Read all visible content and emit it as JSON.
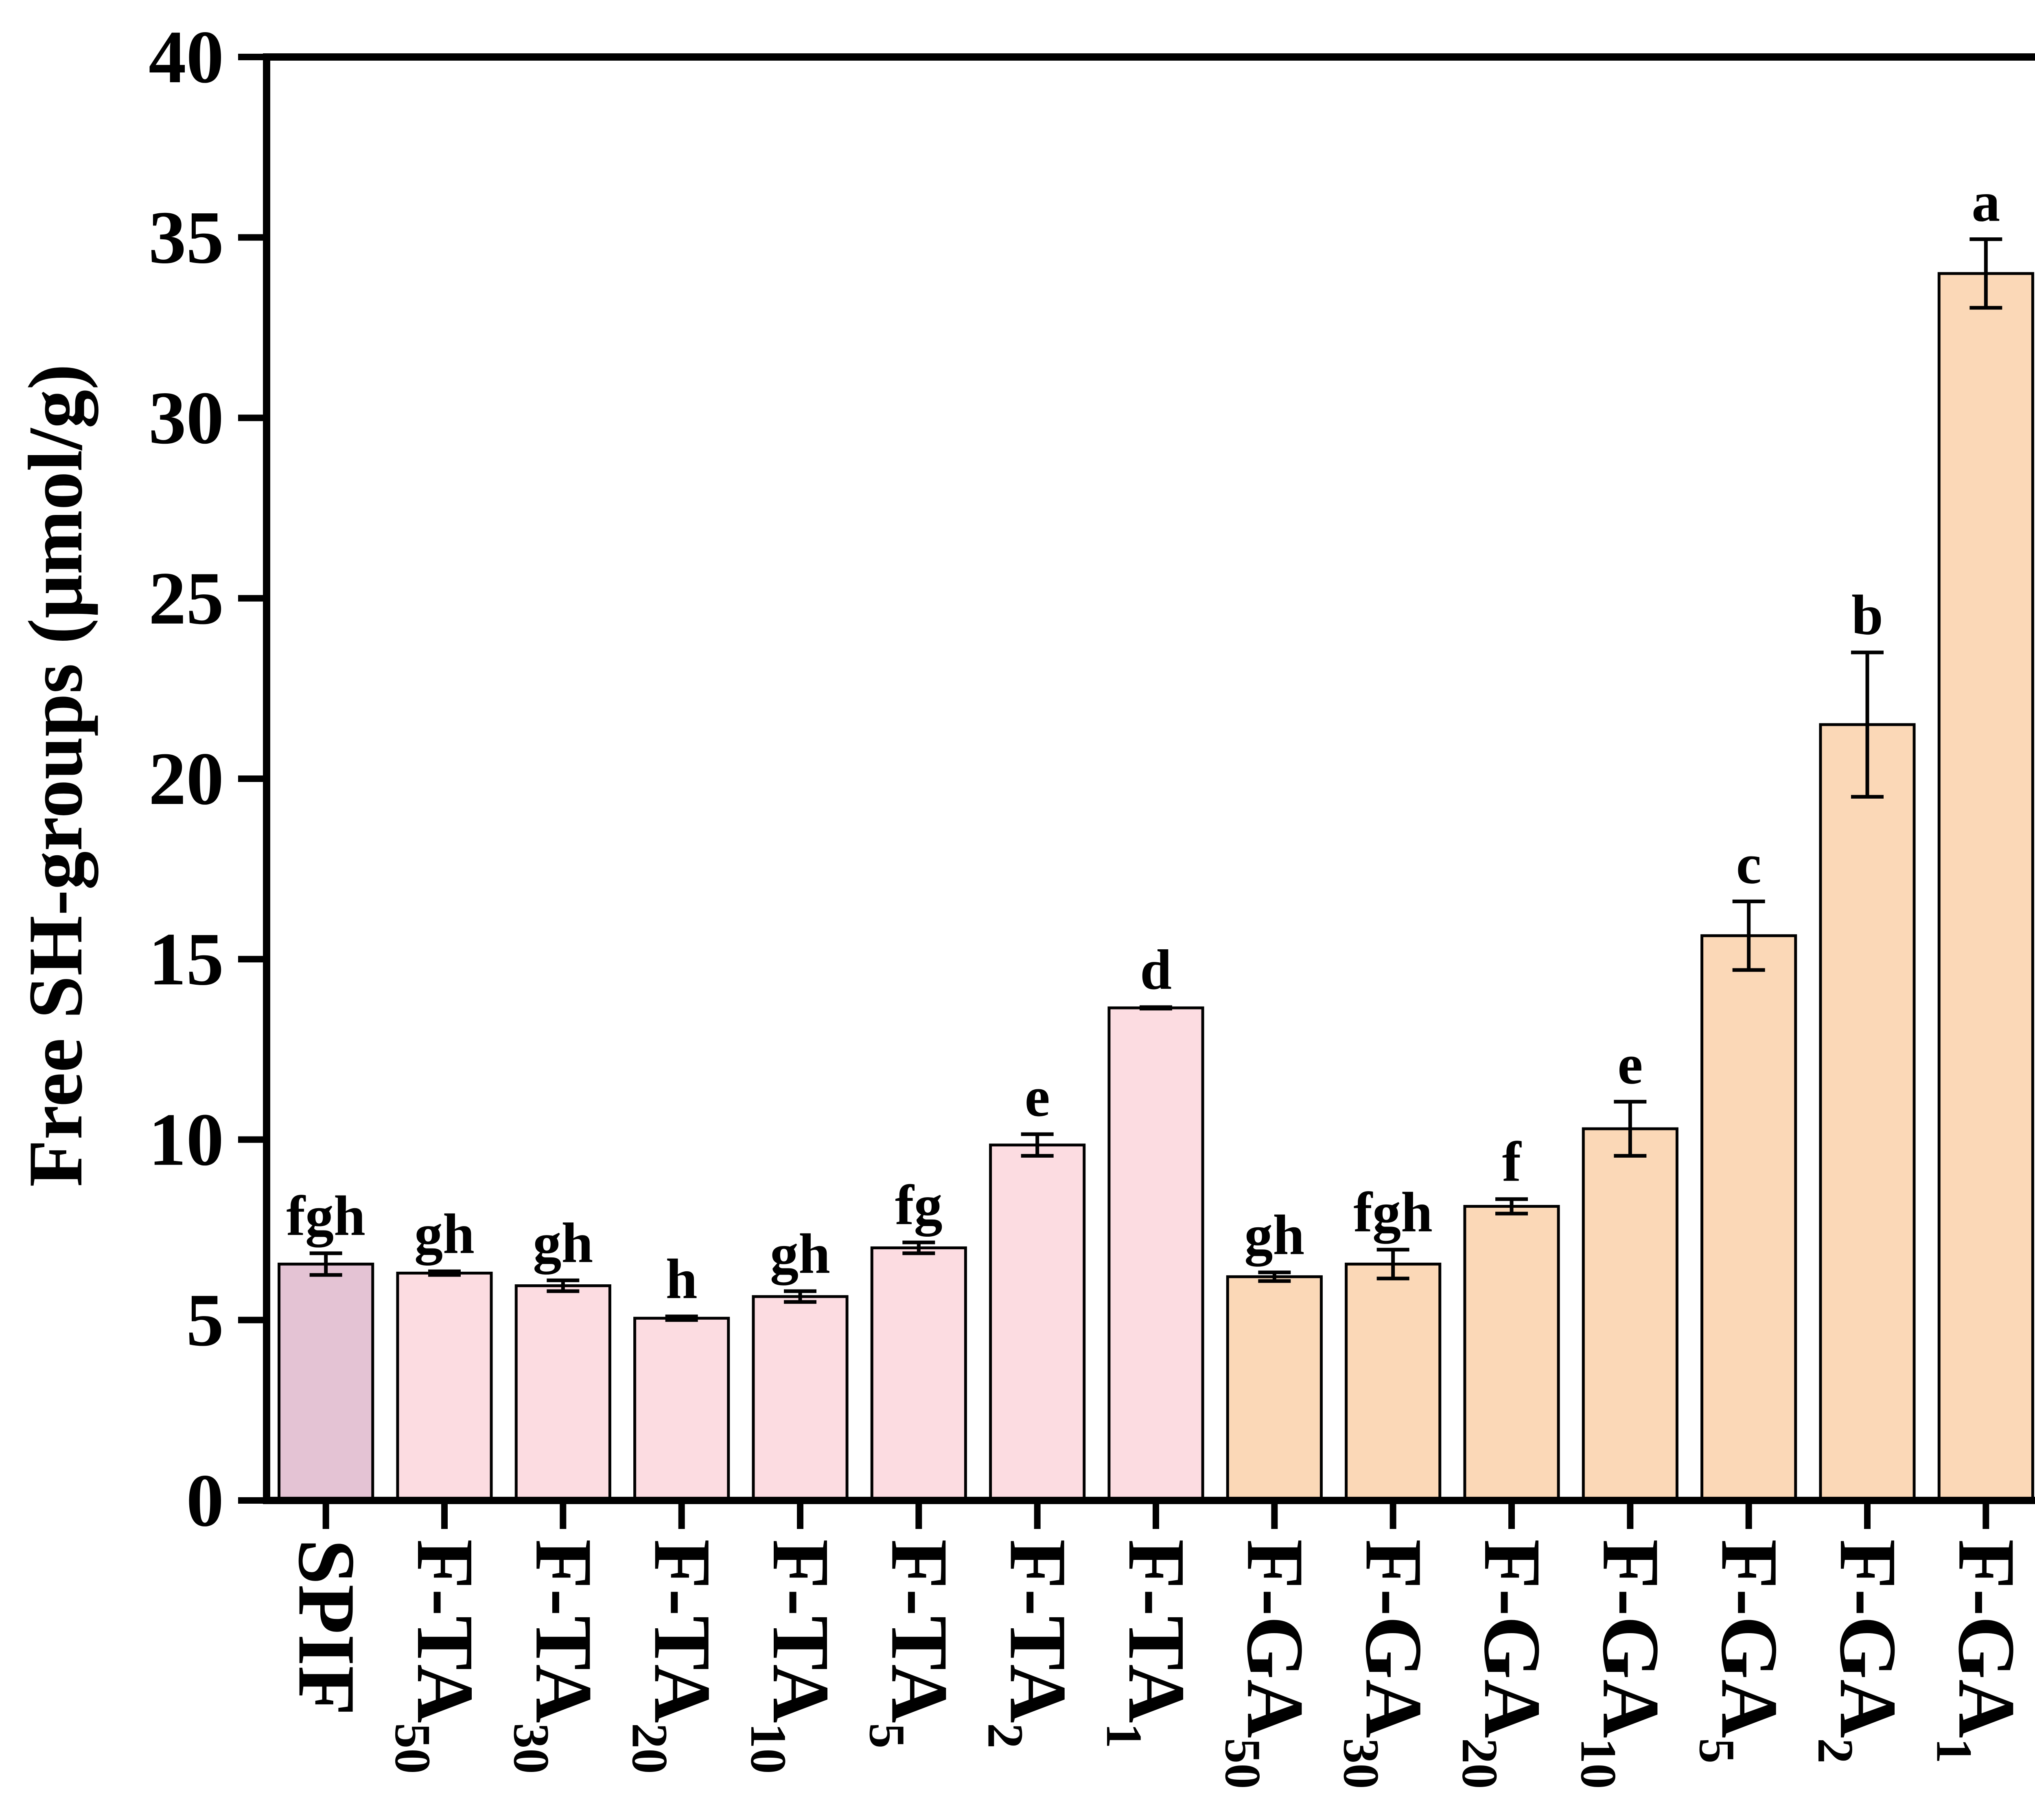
{
  "chart_data": {
    "type": "bar",
    "ylabel": "Free SH-groups (μmol/g)",
    "ylim": [
      0,
      40
    ],
    "yticks": [
      "0",
      "5",
      "10",
      "15",
      "20",
      "25",
      "30",
      "35",
      "40"
    ],
    "categories": [
      {
        "base": "SPIF",
        "sub": ""
      },
      {
        "base": "F-TA",
        "sub": "50"
      },
      {
        "base": "F-TA",
        "sub": "30"
      },
      {
        "base": "F-TA",
        "sub": "20"
      },
      {
        "base": "F-TA",
        "sub": "10"
      },
      {
        "base": "F-TA",
        "sub": "5"
      },
      {
        "base": "F-TA",
        "sub": "2"
      },
      {
        "base": "F-TA",
        "sub": "1"
      },
      {
        "base": "F-GA",
        "sub": "50"
      },
      {
        "base": "F-GA",
        "sub": "30"
      },
      {
        "base": "F-GA",
        "sub": "20"
      },
      {
        "base": "F-GA",
        "sub": "10"
      },
      {
        "base": "F-GA",
        "sub": "5"
      },
      {
        "base": "F-GA",
        "sub": "2"
      },
      {
        "base": "F-GA",
        "sub": "1"
      }
    ],
    "values": [
      6.55,
      6.3,
      5.95,
      5.05,
      5.65,
      7.0,
      9.85,
      13.65,
      6.2,
      6.55,
      8.15,
      10.3,
      15.65,
      21.5,
      34.0
    ],
    "errors": [
      0.3,
      0.05,
      0.15,
      0.05,
      0.15,
      0.15,
      0.3,
      0.02,
      0.12,
      0.4,
      0.2,
      0.75,
      0.95,
      2.0,
      0.95
    ],
    "letters": [
      "fgh",
      "gh",
      "gh",
      "h",
      "gh",
      "fg",
      "e",
      "d",
      "gh",
      "fgh",
      "f",
      "e",
      "c",
      "b",
      "a"
    ],
    "colors": [
      "#e4c3d4",
      "#fcdce1",
      "#fcdce1",
      "#fcdce1",
      "#fcdce1",
      "#fcdce1",
      "#fcdce1",
      "#fcdce1",
      "#fbd8b7",
      "#fbd8b7",
      "#fbd8b7",
      "#fbd8b7",
      "#fbd8b7",
      "#fbd8b7",
      "#fbd8b7"
    ],
    "grid": false,
    "legend": "none"
  }
}
